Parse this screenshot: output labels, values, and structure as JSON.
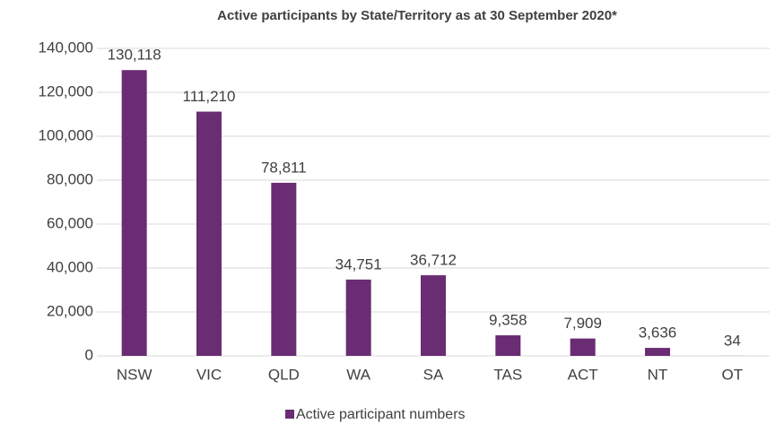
{
  "chart_data": {
    "type": "bar",
    "title": "Active participants by State/Territory as at 30 September 2020*",
    "categories": [
      "NSW",
      "VIC",
      "QLD",
      "WA",
      "SA",
      "TAS",
      "ACT",
      "NT",
      "OT"
    ],
    "series": [
      {
        "name": "Active participant numbers",
        "color": "#6a2c73",
        "values": [
          130118,
          111210,
          78811,
          34751,
          36712,
          9358,
          7909,
          3636,
          34
        ],
        "value_labels": [
          "130,118",
          "111,210",
          "78,811",
          "34,751",
          "36,712",
          "9,358",
          "7,909",
          "3,636",
          "34"
        ]
      }
    ],
    "ylim": [
      0,
      140000
    ],
    "yticks": [
      0,
      {
        "value": 20000,
        "label": "20,000"
      },
      {
        "value": 40000,
        "label": "40,000"
      },
      {
        "value": 60000,
        "label": "60,000"
      },
      {
        "value": 80000,
        "label": "80,000"
      },
      {
        "value": 100000,
        "label": "100,000"
      },
      {
        "value": 120000,
        "label": "120,000"
      },
      {
        "value": 140000,
        "label": "140,000"
      }
    ],
    "grid": true,
    "legend": "bottom"
  }
}
